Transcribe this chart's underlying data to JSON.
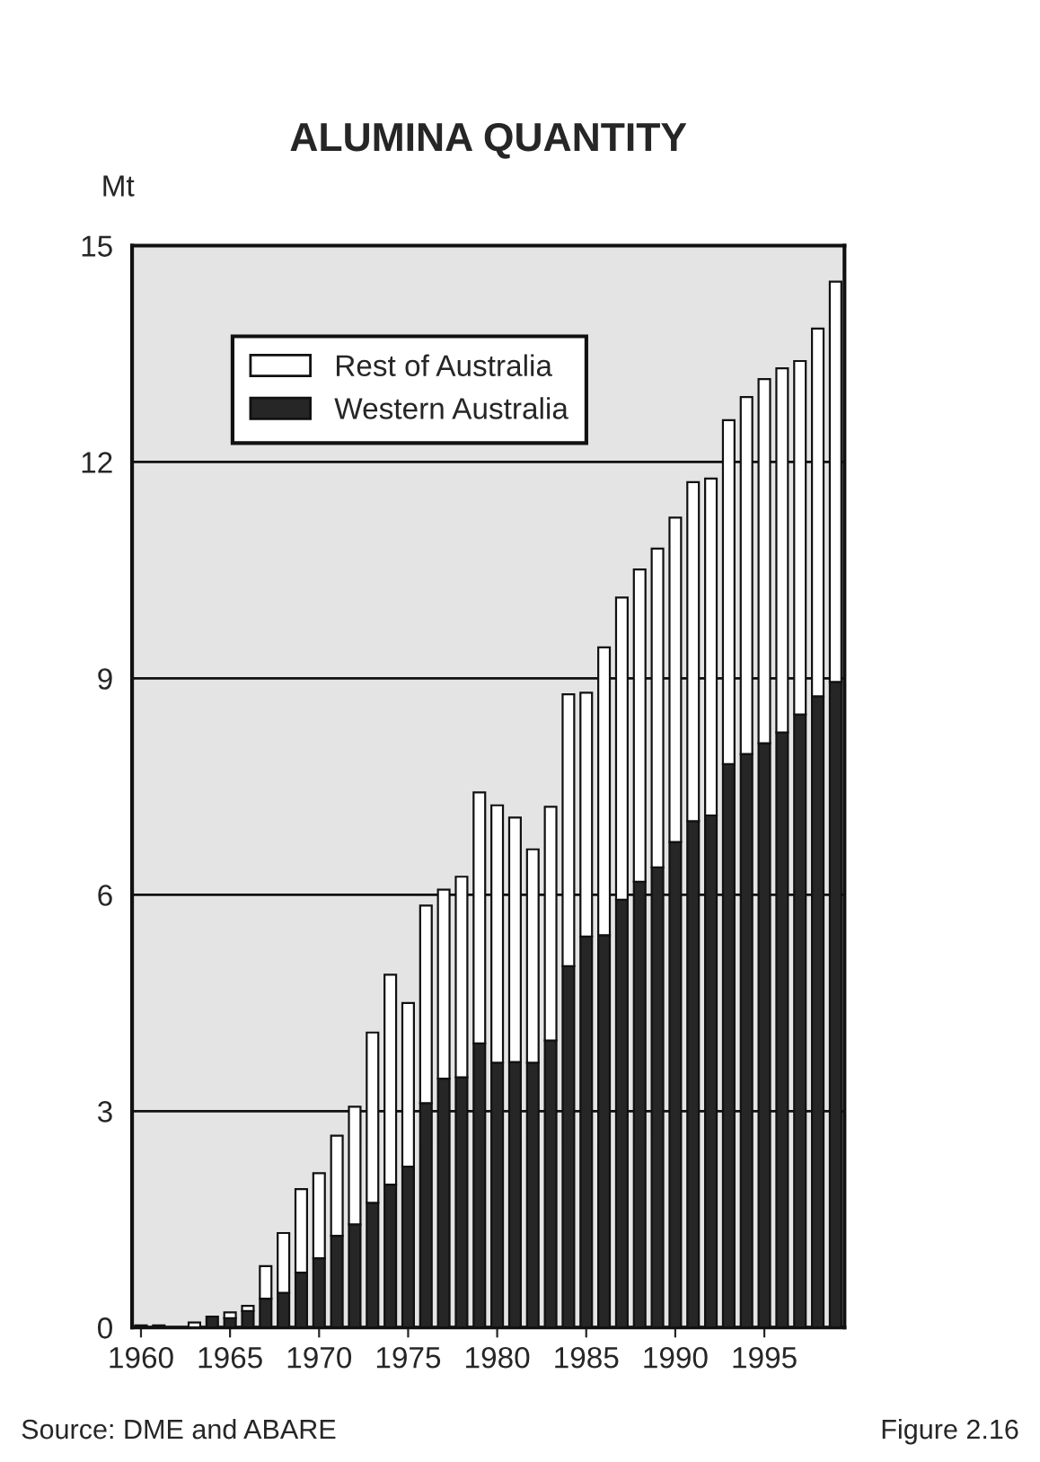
{
  "chart_data": {
    "type": "bar",
    "title": "ALUMINA QUANTITY",
    "ylabel": "Mt",
    "stacked": true,
    "x": [
      1960,
      1961,
      1962,
      1963,
      1964,
      1965,
      1966,
      1967,
      1968,
      1969,
      1970,
      1971,
      1972,
      1973,
      1974,
      1975,
      1976,
      1977,
      1978,
      1979,
      1980,
      1981,
      1982,
      1983,
      1984,
      1985,
      1986,
      1987,
      1988,
      1989,
      1990,
      1991,
      1992,
      1993,
      1994,
      1995,
      1996,
      1997,
      1998,
      1999
    ],
    "series": [
      {
        "name": "Western Australia",
        "color": "#262626",
        "values": [
          0.03,
          0.03,
          0,
          0,
          0.15,
          0.13,
          0.23,
          0.4,
          0.48,
          0.76,
          0.96,
          1.27,
          1.43,
          1.73,
          1.98,
          2.23,
          3.11,
          3.45,
          3.47,
          3.94,
          3.67,
          3.68,
          3.67,
          3.98,
          5.01,
          5.42,
          5.44,
          5.93,
          6.18,
          6.38,
          6.73,
          7.02,
          7.1,
          7.81,
          7.95,
          8.1,
          8.25,
          8.5,
          8.75,
          8.95
        ]
      },
      {
        "name": "Rest of Australia",
        "color": "#ffffff",
        "values": [
          0,
          0,
          0,
          0.07,
          0,
          0.08,
          0.07,
          0.45,
          0.83,
          1.16,
          1.18,
          1.39,
          1.63,
          2.36,
          2.91,
          2.27,
          2.74,
          2.62,
          2.78,
          3.48,
          3.57,
          3.39,
          2.96,
          3.24,
          3.77,
          3.38,
          3.99,
          4.19,
          4.33,
          4.42,
          4.5,
          4.7,
          4.67,
          4.77,
          4.95,
          5.05,
          5.05,
          4.9,
          5.1,
          5.55
        ]
      }
    ],
    "xlim": [
      1959.5,
      1999.5
    ],
    "xticks": [
      1960,
      1965,
      1970,
      1975,
      1980,
      1985,
      1990,
      1995
    ],
    "ylim": [
      0,
      15
    ],
    "yticks": [
      0,
      3,
      6,
      9,
      12,
      15
    ],
    "grid": "y",
    "legend": "top left",
    "annotations": [
      "Source: DME and ABARE",
      "Figure 2.16"
    ]
  }
}
